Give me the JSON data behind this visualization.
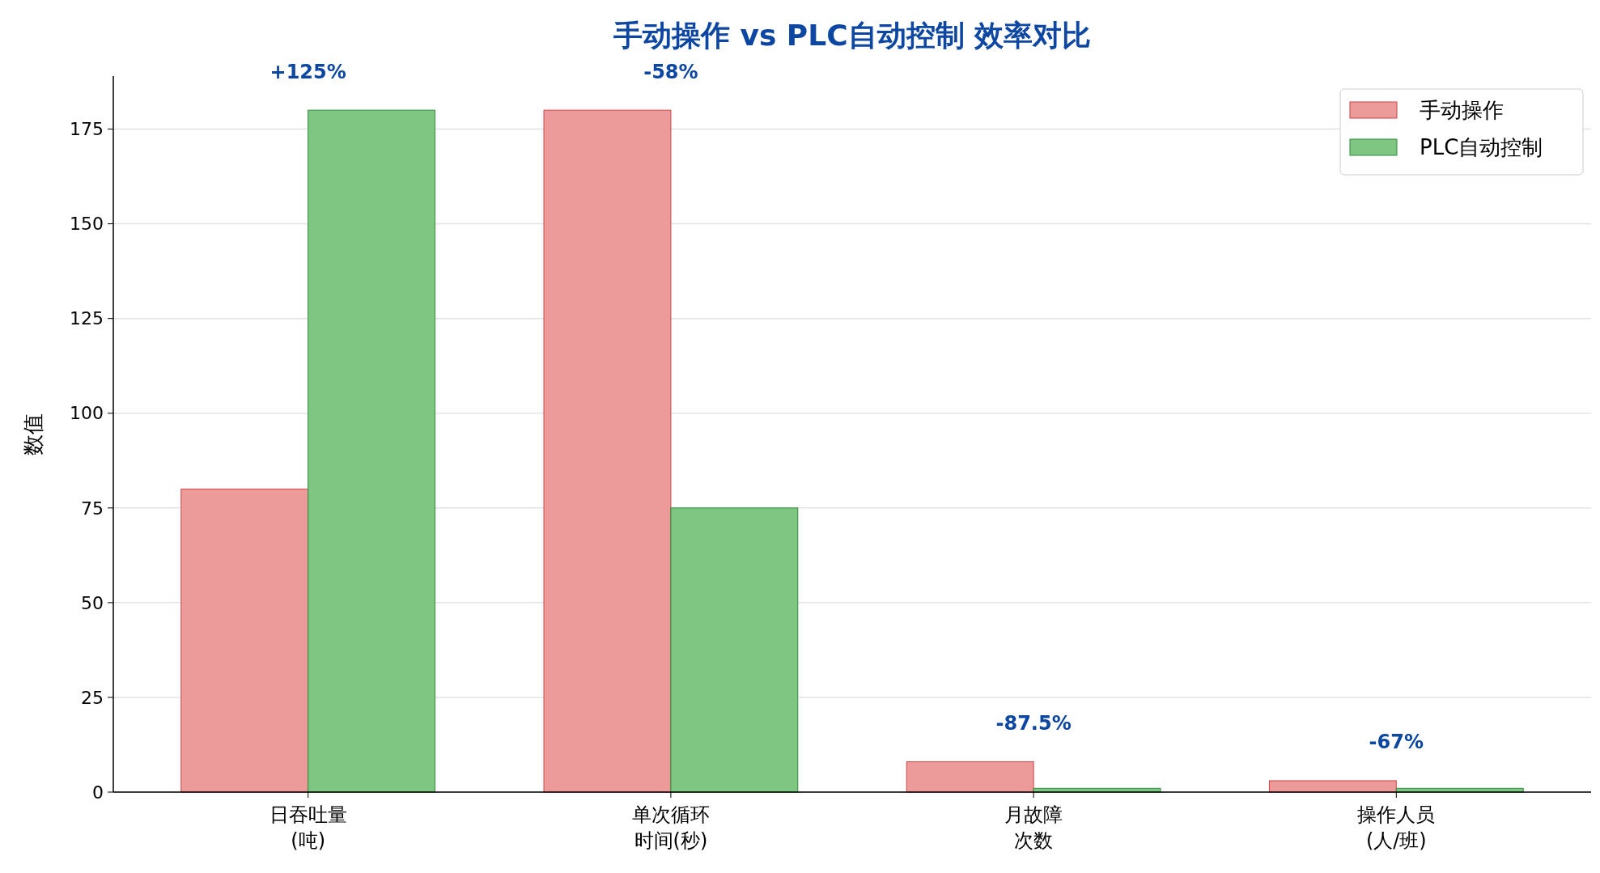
{
  "chart_data": {
    "type": "bar",
    "title": "手动操作 vs PLC自动控制 效率对比",
    "ylabel": "数值",
    "categories": [
      "日吞吐量(吨)",
      "单次循环时间(秒)",
      "月故障次数",
      "操作人员(人/班)"
    ],
    "series": [
      {
        "name": "手动操作",
        "color": "#ec9a9a",
        "values": [
          80,
          180,
          8,
          3
        ]
      },
      {
        "name": "PLC自动控制",
        "color": "#80c683",
        "values": [
          180,
          75,
          1,
          1
        ]
      }
    ],
    "ylim": [
      0,
      189
    ],
    "yticks": [
      0,
      25,
      50,
      75,
      100,
      125,
      150,
      175
    ],
    "grid": "y",
    "legend": "top right",
    "annotations": [
      "+125%",
      "-58%",
      "-87.5%",
      "-67%"
    ]
  }
}
